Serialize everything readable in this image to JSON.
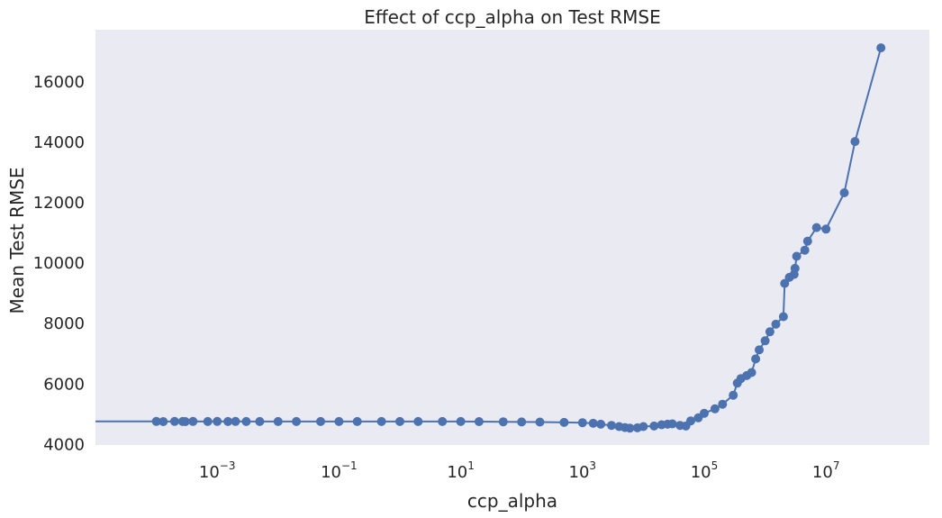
{
  "chart_data": {
    "type": "line",
    "title": "Effect of ccp_alpha on Test RMSE",
    "xlabel": "ccp_alpha",
    "ylabel": "Mean Test RMSE",
    "xscale": "log",
    "xlim": [
      1e-05,
      500000000.0
    ],
    "ylim": [
      3950,
      17700
    ],
    "grid": false,
    "legend": "none",
    "x_ticks": [
      {
        "value": 0.001,
        "base": "10",
        "exp": "−3"
      },
      {
        "value": 0.1,
        "base": "10",
        "exp": "−1"
      },
      {
        "value": 10,
        "base": "10",
        "exp": "1"
      },
      {
        "value": 1000,
        "base": "10",
        "exp": "3"
      },
      {
        "value": 100000,
        "base": "10",
        "exp": "5"
      },
      {
        "value": 10000000,
        "base": "10",
        "exp": "7"
      }
    ],
    "y_ticks": [
      {
        "value": 4000,
        "label": "4000"
      },
      {
        "value": 6000,
        "label": "6000"
      },
      {
        "value": 8000,
        "label": "8000"
      },
      {
        "value": 10000,
        "label": "10000"
      },
      {
        "value": 12000,
        "label": "12000"
      },
      {
        "value": 14000,
        "label": "14000"
      },
      {
        "value": 16000,
        "label": "16000"
      }
    ],
    "colors": {
      "background": "#eaeaf2",
      "series": "#4c72b0"
    },
    "series": [
      {
        "x": [
          0,
          0.0001,
          0.00013,
          0.0002,
          0.00027,
          0.0003,
          0.0004,
          0.0007,
          0.001,
          0.0015,
          0.002,
          0.003,
          0.005,
          0.01,
          0.02,
          0.05,
          0.1,
          0.2,
          0.5,
          1,
          2,
          5,
          10,
          20,
          50,
          100,
          200,
          500,
          1000,
          1500,
          2000,
          3000,
          4000,
          5000,
          6000,
          8000,
          10000,
          15000,
          20000,
          25000,
          30000,
          40000,
          50000,
          60000,
          80000,
          100000,
          150000,
          200000,
          300000,
          350000,
          400000,
          500000,
          600000,
          700000,
          800000,
          1000000,
          1200000,
          1500000,
          2000000,
          2100000,
          2500000,
          3000000,
          3100000,
          3300000,
          4500000,
          5000000,
          7000000,
          10000000,
          20000000,
          30000000,
          80000000
        ],
        "y": [
          4730,
          4730,
          4725,
          4730,
          4728,
          4725,
          4730,
          4728,
          4730,
          4728,
          4730,
          4728,
          4728,
          4728,
          4728,
          4728,
          4728,
          4728,
          4728,
          4728,
          4728,
          4728,
          4728,
          4725,
          4720,
          4715,
          4710,
          4700,
          4690,
          4670,
          4640,
          4600,
          4560,
          4530,
          4510,
          4520,
          4560,
          4580,
          4620,
          4640,
          4650,
          4600,
          4580,
          4750,
          4850,
          5000,
          5150,
          5300,
          5600,
          6000,
          6150,
          6250,
          6350,
          6800,
          7100,
          7400,
          7700,
          7950,
          8200,
          9300,
          9500,
          9600,
          9800,
          10200,
          10400,
          10700,
          11150,
          11100,
          12300,
          14000,
          17100
        ]
      }
    ]
  }
}
